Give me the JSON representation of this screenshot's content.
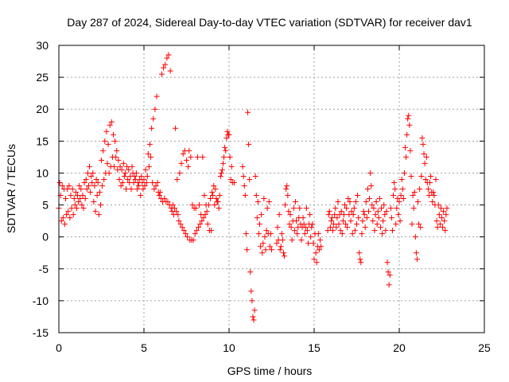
{
  "chart_data": {
    "type": "scatter",
    "title": "Day 287 of 2024, Sidereal Day-to-day VTEC variation (SDTVAR) for receiver dav1",
    "xlabel": "GPS time / hours",
    "ylabel": "SDTVAR / TECUs",
    "xlim": [
      0,
      25
    ],
    "ylim": [
      -15,
      30
    ],
    "grid": true,
    "marker": "+",
    "marker_color": "#ff0000",
    "x_ticks": [
      0,
      5,
      10,
      15,
      20,
      25
    ],
    "y_ticks": [
      -15,
      -10,
      -5,
      0,
      5,
      10,
      15,
      20,
      25,
      30
    ],
    "series": [
      {
        "name": "SDTVAR",
        "color": "#ff0000",
        "x": [
          0.0,
          0.05,
          0.1,
          0.15,
          0.2,
          0.25,
          0.3,
          0.35,
          0.4,
          0.45,
          0.5,
          0.55,
          0.6,
          0.65,
          0.7,
          0.75,
          0.8,
          0.85,
          0.9,
          0.95,
          1.0,
          1.05,
          1.1,
          1.15,
          1.2,
          1.25,
          1.3,
          1.35,
          1.4,
          1.45,
          1.5,
          1.55,
          1.6,
          1.65,
          1.7,
          1.75,
          1.8,
          1.85,
          1.9,
          1.95,
          2.0,
          2.05,
          2.1,
          2.15,
          2.2,
          2.25,
          2.3,
          2.35,
          2.4,
          2.45,
          2.5,
          2.55,
          2.6,
          2.65,
          2.7,
          2.75,
          2.8,
          2.85,
          2.9,
          2.95,
          3.0,
          3.05,
          3.1,
          3.15,
          3.2,
          3.25,
          3.3,
          3.35,
          3.4,
          3.45,
          3.5,
          3.55,
          3.6,
          3.65,
          3.7,
          3.75,
          3.8,
          3.85,
          3.9,
          3.95,
          4.0,
          4.05,
          4.1,
          4.15,
          4.2,
          4.25,
          4.3,
          4.35,
          4.4,
          4.45,
          4.5,
          4.55,
          4.6,
          4.65,
          4.7,
          4.75,
          4.8,
          4.85,
          4.9,
          4.95,
          5.0,
          5.05,
          5.1,
          5.15,
          5.2,
          5.25,
          5.3,
          5.35,
          5.4,
          5.45,
          5.5,
          5.55,
          5.6,
          5.65,
          5.7,
          5.75,
          5.8,
          5.85,
          5.9,
          5.95,
          6.0,
          6.05,
          6.1,
          6.15,
          6.2,
          6.25,
          6.3,
          6.35,
          6.4,
          6.45,
          6.5,
          6.55,
          6.6,
          6.65,
          6.7,
          6.75,
          6.8,
          6.85,
          6.9,
          6.95,
          7.0,
          7.05,
          7.1,
          7.15,
          7.2,
          7.25,
          7.3,
          7.35,
          7.4,
          7.45,
          7.5,
          7.55,
          7.6,
          7.65,
          7.7,
          7.75,
          7.8,
          7.85,
          7.9,
          7.95,
          8.0,
          8.05,
          8.1,
          8.15,
          8.2,
          8.25,
          8.3,
          8.35,
          8.4,
          8.45,
          8.5,
          8.55,
          8.6,
          8.65,
          8.7,
          8.75,
          8.8,
          8.85,
          8.9,
          8.95,
          9.0,
          9.05,
          9.1,
          9.15,
          9.2,
          9.25,
          9.3,
          9.35,
          9.4,
          9.45,
          9.5,
          9.55,
          9.6,
          9.65,
          9.7,
          9.75,
          9.8,
          9.85,
          9.9,
          9.95,
          10.0,
          10.05,
          10.1,
          10.15,
          10.2,
          10.3,
          10.8,
          10.85,
          10.9,
          10.95,
          11.0,
          11.05,
          11.1,
          11.15,
          11.2,
          11.25,
          11.3,
          11.35,
          11.4,
          11.45,
          11.5,
          11.55,
          11.6,
          11.65,
          11.7,
          11.75,
          11.8,
          11.85,
          11.9,
          11.95,
          12.0,
          12.05,
          12.1,
          12.15,
          12.2,
          12.25,
          12.3,
          12.35,
          12.4,
          12.45,
          12.5,
          12.8,
          12.85,
          12.9,
          12.95,
          13.0,
          13.05,
          13.1,
          13.15,
          13.2,
          13.25,
          13.3,
          13.35,
          13.4,
          13.45,
          13.5,
          13.55,
          13.6,
          13.65,
          13.7,
          13.75,
          13.8,
          13.85,
          13.9,
          13.95,
          14.0,
          14.05,
          14.1,
          14.15,
          14.2,
          14.25,
          14.3,
          14.35,
          14.4,
          14.45,
          14.5,
          14.55,
          14.6,
          14.65,
          14.7,
          14.75,
          14.8,
          14.85,
          14.9,
          14.95,
          15.0,
          15.05,
          15.1,
          15.15,
          15.2,
          15.25,
          15.3,
          15.35,
          15.4,
          15.8,
          15.85,
          15.9,
          15.95,
          16.0,
          16.05,
          16.1,
          16.15,
          16.2,
          16.25,
          16.3,
          16.35,
          16.4,
          16.45,
          16.5,
          16.55,
          16.6,
          16.65,
          16.7,
          16.75,
          16.8,
          16.85,
          16.9,
          16.95,
          17.0,
          17.05,
          17.1,
          17.15,
          17.2,
          17.25,
          17.3,
          17.35,
          17.4,
          17.45,
          17.5,
          17.55,
          17.6,
          17.65,
          17.7,
          17.75,
          17.8,
          17.85,
          17.9,
          17.95,
          18.0,
          18.05,
          18.1,
          18.15,
          18.2,
          18.25,
          18.3,
          18.35,
          18.4,
          18.45,
          18.5,
          18.55,
          18.6,
          18.65,
          18.7,
          18.75,
          18.8,
          18.85,
          18.9,
          18.95,
          19.0,
          19.05,
          19.1,
          19.15,
          19.2,
          19.25,
          19.3,
          19.35,
          19.4,
          19.45,
          19.5,
          19.55,
          19.6,
          19.65,
          19.7,
          19.75,
          19.8,
          19.85,
          19.9,
          19.95,
          20.0,
          20.05,
          20.1,
          20.15,
          20.2,
          20.25,
          20.3,
          20.35,
          20.4,
          20.45,
          20.5,
          20.55,
          20.6,
          20.65,
          20.7,
          20.75,
          20.8,
          20.85,
          20.9,
          20.95,
          21.0,
          21.05,
          21.1,
          21.15,
          21.2,
          21.25,
          21.3,
          21.35,
          21.4,
          21.45,
          21.5,
          21.55,
          21.6,
          21.65,
          21.7,
          21.75,
          21.8,
          21.85,
          21.9,
          21.95,
          22.0,
          22.05,
          22.1,
          22.15,
          22.2,
          22.25,
          22.3,
          22.35,
          22.4,
          22.45,
          22.5,
          22.55,
          22.6,
          22.65,
          22.7,
          22.75,
          22.8
        ],
        "y": [
          4.5,
          8.5,
          6.5,
          2.5,
          8.0,
          3.0,
          7.5,
          2.0,
          6.0,
          3.5,
          7.5,
          4.0,
          8.0,
          3.0,
          6.5,
          4.5,
          7.5,
          3.5,
          6.0,
          5.0,
          7.0,
          4.5,
          6.5,
          5.5,
          8.0,
          6.0,
          7.5,
          5.0,
          6.5,
          4.5,
          8.5,
          6.0,
          9.0,
          7.5,
          10.0,
          8.0,
          11.0,
          7.0,
          9.5,
          8.5,
          10.0,
          5.5,
          8.0,
          4.0,
          9.0,
          6.5,
          8.5,
          3.5,
          7.0,
          5.0,
          12.0,
          8.0,
          13.5,
          9.0,
          15.0,
          10.0,
          16.5,
          11.5,
          14.5,
          10.0,
          17.5,
          11.0,
          18.0,
          12.5,
          16.0,
          11.0,
          15.0,
          12.5,
          13.5,
          10.5,
          12.0,
          9.0,
          11.0,
          8.0,
          10.5,
          8.5,
          11.5,
          9.5,
          10.0,
          7.5,
          11.0,
          9.0,
          10.5,
          8.5,
          9.5,
          7.5,
          11.0,
          10.0,
          8.5,
          9.5,
          9.0,
          10.0,
          7.5,
          8.5,
          8.0,
          9.0,
          6.5,
          9.5,
          8.5,
          7.5,
          9.0,
          8.0,
          10.5,
          8.5,
          9.5,
          13.0,
          11.0,
          14.5,
          12.5,
          17.0,
          8.5,
          18.5,
          7.5,
          20.0,
          8.0,
          22.0,
          8.5,
          7.0,
          6.5,
          7.0,
          6.0,
          25.5,
          5.5,
          26.5,
          6.0,
          27.0,
          5.5,
          28.0,
          5.5,
          28.5,
          5.0,
          26.0,
          4.5,
          4.0,
          5.0,
          3.5,
          4.5,
          17.0,
          4.0,
          9.0,
          3.5,
          2.5,
          10.0,
          2.0,
          11.5,
          1.5,
          13.0,
          1.0,
          13.5,
          0.5,
          12.0,
          0.0,
          11.0,
          13.5,
          -0.5,
          12.5,
          -0.5,
          5.0,
          -0.5,
          4.5,
          0.5,
          4.5,
          1.0,
          12.5,
          1.5,
          5.0,
          2.0,
          3.5,
          2.5,
          12.5,
          3.0,
          6.5,
          3.5,
          5.0,
          4.0,
          2.0,
          5.0,
          1.0,
          6.0,
          1.0,
          7.0,
          6.5,
          8.0,
          5.0,
          7.5,
          6.0,
          5.5,
          5.5,
          4.5,
          6.5,
          9.5,
          10.0,
          10.5,
          11.5,
          12.5,
          14.0,
          13.5,
          15.5,
          16.5,
          16.0,
          16.0,
          12.5,
          9.0,
          11.0,
          8.5,
          8.5,
          11.0,
          9.5,
          8.0,
          6.5,
          0.5,
          -2.0,
          19.5,
          14.5,
          9.0,
          -5.5,
          -8.5,
          -10.0,
          -12.5,
          -13.0,
          -11.5,
          9.5,
          6.5,
          3.0,
          5.5,
          0.5,
          2.0,
          -1.5,
          3.5,
          -2.5,
          -1.0,
          6.0,
          0.0,
          -2.0,
          1.0,
          4.5,
          0.5,
          5.5,
          -1.5,
          0.5,
          -2.0,
          -1.0,
          1.5,
          -0.5,
          3.5,
          -2.0,
          -1.5,
          0.5,
          -0.5,
          -2.5,
          -3.0,
          5.0,
          7.5,
          8.0,
          6.5,
          4.0,
          2.0,
          3.5,
          1.5,
          -0.5,
          2.5,
          4.5,
          1.0,
          5.5,
          2.5,
          0.5,
          1.5,
          3.0,
          4.5,
          2.0,
          -0.5,
          1.5,
          3.0,
          2.0,
          0.5,
          1.5,
          4.5,
          1.0,
          -1.0,
          2.0,
          3.5,
          0.0,
          1.5,
          2.0,
          -1.0,
          -3.5,
          0.5,
          -2.5,
          -4.0,
          -1.5,
          0.5,
          -2.0,
          -0.5,
          -1.5,
          1.0,
          3.5,
          4.0,
          1.5,
          2.5,
          3.0,
          1.0,
          2.0,
          3.5,
          4.5,
          1.5,
          3.0,
          5.5,
          2.0,
          3.5,
          1.0,
          4.0,
          0.5,
          2.5,
          3.5,
          5.0,
          2.0,
          4.5,
          1.5,
          6.0,
          3.5,
          5.5,
          2.5,
          4.0,
          0.5,
          3.5,
          4.5,
          1.0,
          5.5,
          2.0,
          6.5,
          3.0,
          -2.5,
          -3.5,
          -4.0,
          0.5,
          2.5,
          4.0,
          3.5,
          1.5,
          5.5,
          3.0,
          7.5,
          4.0,
          6.0,
          10.0,
          8.0,
          5.0,
          2.5,
          4.5,
          1.0,
          3.5,
          5.5,
          2.0,
          4.0,
          3.0,
          6.0,
          1.5,
          4.5,
          0.5,
          2.5,
          5.0,
          3.5,
          1.0,
          4.0,
          -4.0,
          -5.5,
          -7.5,
          -6.0,
          4.5,
          3.0,
          1.0,
          6.5,
          8.5,
          7.5,
          2.0,
          4.5,
          6.0,
          3.5,
          5.5,
          2.5,
          6.5,
          9.0,
          7.5,
          6.0,
          10.0,
          14.0,
          12.5,
          16.0,
          18.5,
          19.0,
          17.5,
          13.5,
          9.5,
          2.0,
          6.5,
          4.5,
          7.0,
          0.0,
          -2.5,
          -3.5,
          5.5,
          2.0,
          7.5,
          1.5,
          9.5,
          15.5,
          14.5,
          13.0,
          11.5,
          9.0,
          12.5,
          8.5,
          7.5,
          6.5,
          8.5,
          9.5,
          7.0,
          5.5,
          7.0,
          6.5,
          5.0,
          9.0,
          2.5,
          1.5,
          5.0,
          3.5,
          2.0,
          4.5,
          3.0,
          1.5,
          4.0,
          2.5,
          1.0,
          3.5,
          4.5
        ]
      }
    ]
  }
}
